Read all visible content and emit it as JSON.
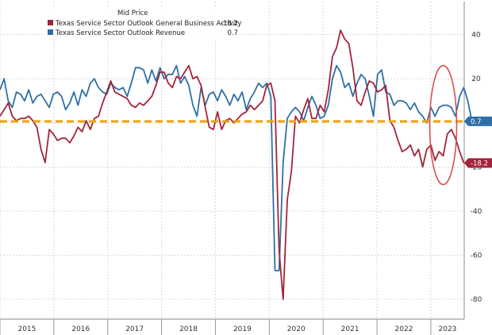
{
  "chart_data": {
    "type": "line",
    "legend": {
      "title": "Mid Price",
      "placement": "top-left"
    },
    "series": [
      {
        "name": "Texas Service Sector Outlook General Business Activity",
        "last_value_label": "-18.2",
        "color": "#a3243b",
        "values": [
          3,
          6,
          9,
          3,
          1,
          2,
          2,
          3,
          1,
          -2,
          -12,
          -18,
          -3,
          -5,
          -8,
          -7,
          -7,
          -9,
          -6,
          -2,
          -4,
          1,
          -3,
          2,
          3,
          9,
          14,
          19,
          14,
          13,
          12,
          11,
          8,
          7,
          9,
          8,
          10,
          12,
          17,
          23,
          23,
          18,
          16,
          21,
          20,
          23,
          26,
          20,
          21,
          17,
          7,
          -2,
          -3,
          5,
          -3,
          1,
          2,
          0,
          2,
          4,
          5,
          8,
          6,
          8,
          10,
          17,
          18,
          10,
          -58,
          -80,
          -35,
          -22,
          3,
          0,
          6,
          11,
          2,
          2,
          8,
          5,
          15,
          30,
          34,
          42,
          38,
          36,
          25,
          10,
          8,
          14,
          19,
          18,
          14,
          15,
          17,
          1,
          -2,
          -8,
          -13,
          -12,
          -10,
          -15,
          -12,
          -20,
          -12,
          -10,
          -17,
          -13,
          -15,
          -5,
          -3,
          -7,
          -13,
          -18.2
        ]
      },
      {
        "name": "Texas Service Sector Outlook Revenue",
        "last_value_label": "0.7",
        "color": "#2f6fa6",
        "values": [
          15,
          20,
          10,
          7,
          14,
          13,
          10,
          15,
          9,
          12,
          13,
          10,
          7,
          13,
          14,
          12,
          6,
          9,
          14,
          8,
          15,
          12,
          18,
          20,
          16,
          14,
          13,
          18,
          16,
          15,
          16,
          12,
          18,
          25,
          25,
          24,
          18,
          24,
          19,
          25,
          20,
          22,
          22,
          26,
          18,
          21,
          17,
          8,
          3,
          16,
          8,
          13,
          14,
          10,
          15,
          12,
          8,
          13,
          10,
          14,
          6,
          11,
          14,
          18,
          16,
          18,
          12,
          -67,
          -67,
          -18,
          2,
          5,
          7,
          5,
          1,
          7,
          12,
          8,
          2,
          3,
          8,
          20,
          26,
          23,
          16,
          18,
          12,
          18,
          22,
          20,
          12,
          3,
          22,
          24,
          14,
          13,
          8,
          10,
          10,
          9,
          6,
          9,
          5,
          3,
          0,
          7,
          3,
          7,
          8,
          8,
          7,
          3,
          12,
          16,
          10,
          0.7
        ]
      }
    ],
    "reference_line": {
      "value": 0.7,
      "color": "#f0a30a"
    },
    "x_axis": {
      "labels": [
        "2015",
        "2016",
        "2017",
        "2018",
        "2019",
        "2020",
        "2021",
        "2022",
        "2023"
      ],
      "range": [
        2015.0,
        2023.62
      ]
    },
    "y_axis": {
      "position": "right",
      "ticks": [
        40,
        20,
        0,
        -20,
        -40,
        -60,
        -80
      ],
      "range": [
        -89,
        55
      ]
    },
    "x_start": 2015.0,
    "x_step": 0.0762,
    "grid": true,
    "highlight": {
      "shape": "ellipse",
      "color": "#d9534f"
    }
  }
}
